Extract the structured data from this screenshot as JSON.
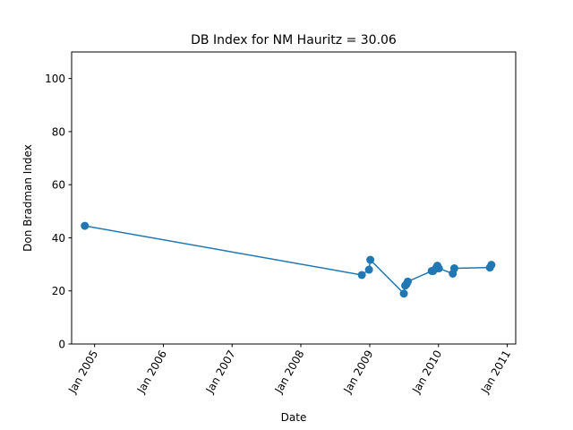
{
  "chart_data": {
    "type": "line",
    "title": "DB Index for NM Hauritz = 30.06",
    "xlabel": "Date",
    "ylabel": "Don Bradman Index",
    "ylim": [
      0,
      110
    ],
    "y_ticks": [
      0,
      20,
      40,
      60,
      80,
      100
    ],
    "x_ticks": [
      {
        "date": "2005-01-01",
        "label": "Jan 2005"
      },
      {
        "date": "2006-01-01",
        "label": "Jan 2006"
      },
      {
        "date": "2007-01-01",
        "label": "Jan 2007"
      },
      {
        "date": "2008-01-01",
        "label": "Jan 2008"
      },
      {
        "date": "2009-01-01",
        "label": "Jan 2009"
      },
      {
        "date": "2010-01-01",
        "label": "Jan 2010"
      },
      {
        "date": "2011-01-01",
        "label": "Jan 2011"
      }
    ],
    "xlim": [
      "2004-09-01",
      "2011-02-15"
    ],
    "grid": false,
    "color": "#1f77b4",
    "series": [
      {
        "points": [
          {
            "x": "2004-11-10",
            "y": 44.5
          },
          {
            "x": "2008-11-20",
            "y": 26.0
          },
          {
            "x": "2008-12-28",
            "y": 28.0
          },
          {
            "x": "2009-01-04",
            "y": 31.7
          },
          {
            "x": "2009-07-01",
            "y": 19.0
          },
          {
            "x": "2009-07-08",
            "y": 22.0
          },
          {
            "x": "2009-07-15",
            "y": 22.5
          },
          {
            "x": "2009-07-22",
            "y": 23.5
          },
          {
            "x": "2009-11-26",
            "y": 27.5
          },
          {
            "x": "2009-12-04",
            "y": 27.5
          },
          {
            "x": "2009-12-18",
            "y": 28.5
          },
          {
            "x": "2009-12-26",
            "y": 29.5
          },
          {
            "x": "2010-01-03",
            "y": 28.5
          },
          {
            "x": "2010-03-18",
            "y": 26.5
          },
          {
            "x": "2010-03-26",
            "y": 28.5
          },
          {
            "x": "2010-10-01",
            "y": 28.8
          },
          {
            "x": "2010-10-09",
            "y": 29.8
          }
        ]
      }
    ]
  }
}
